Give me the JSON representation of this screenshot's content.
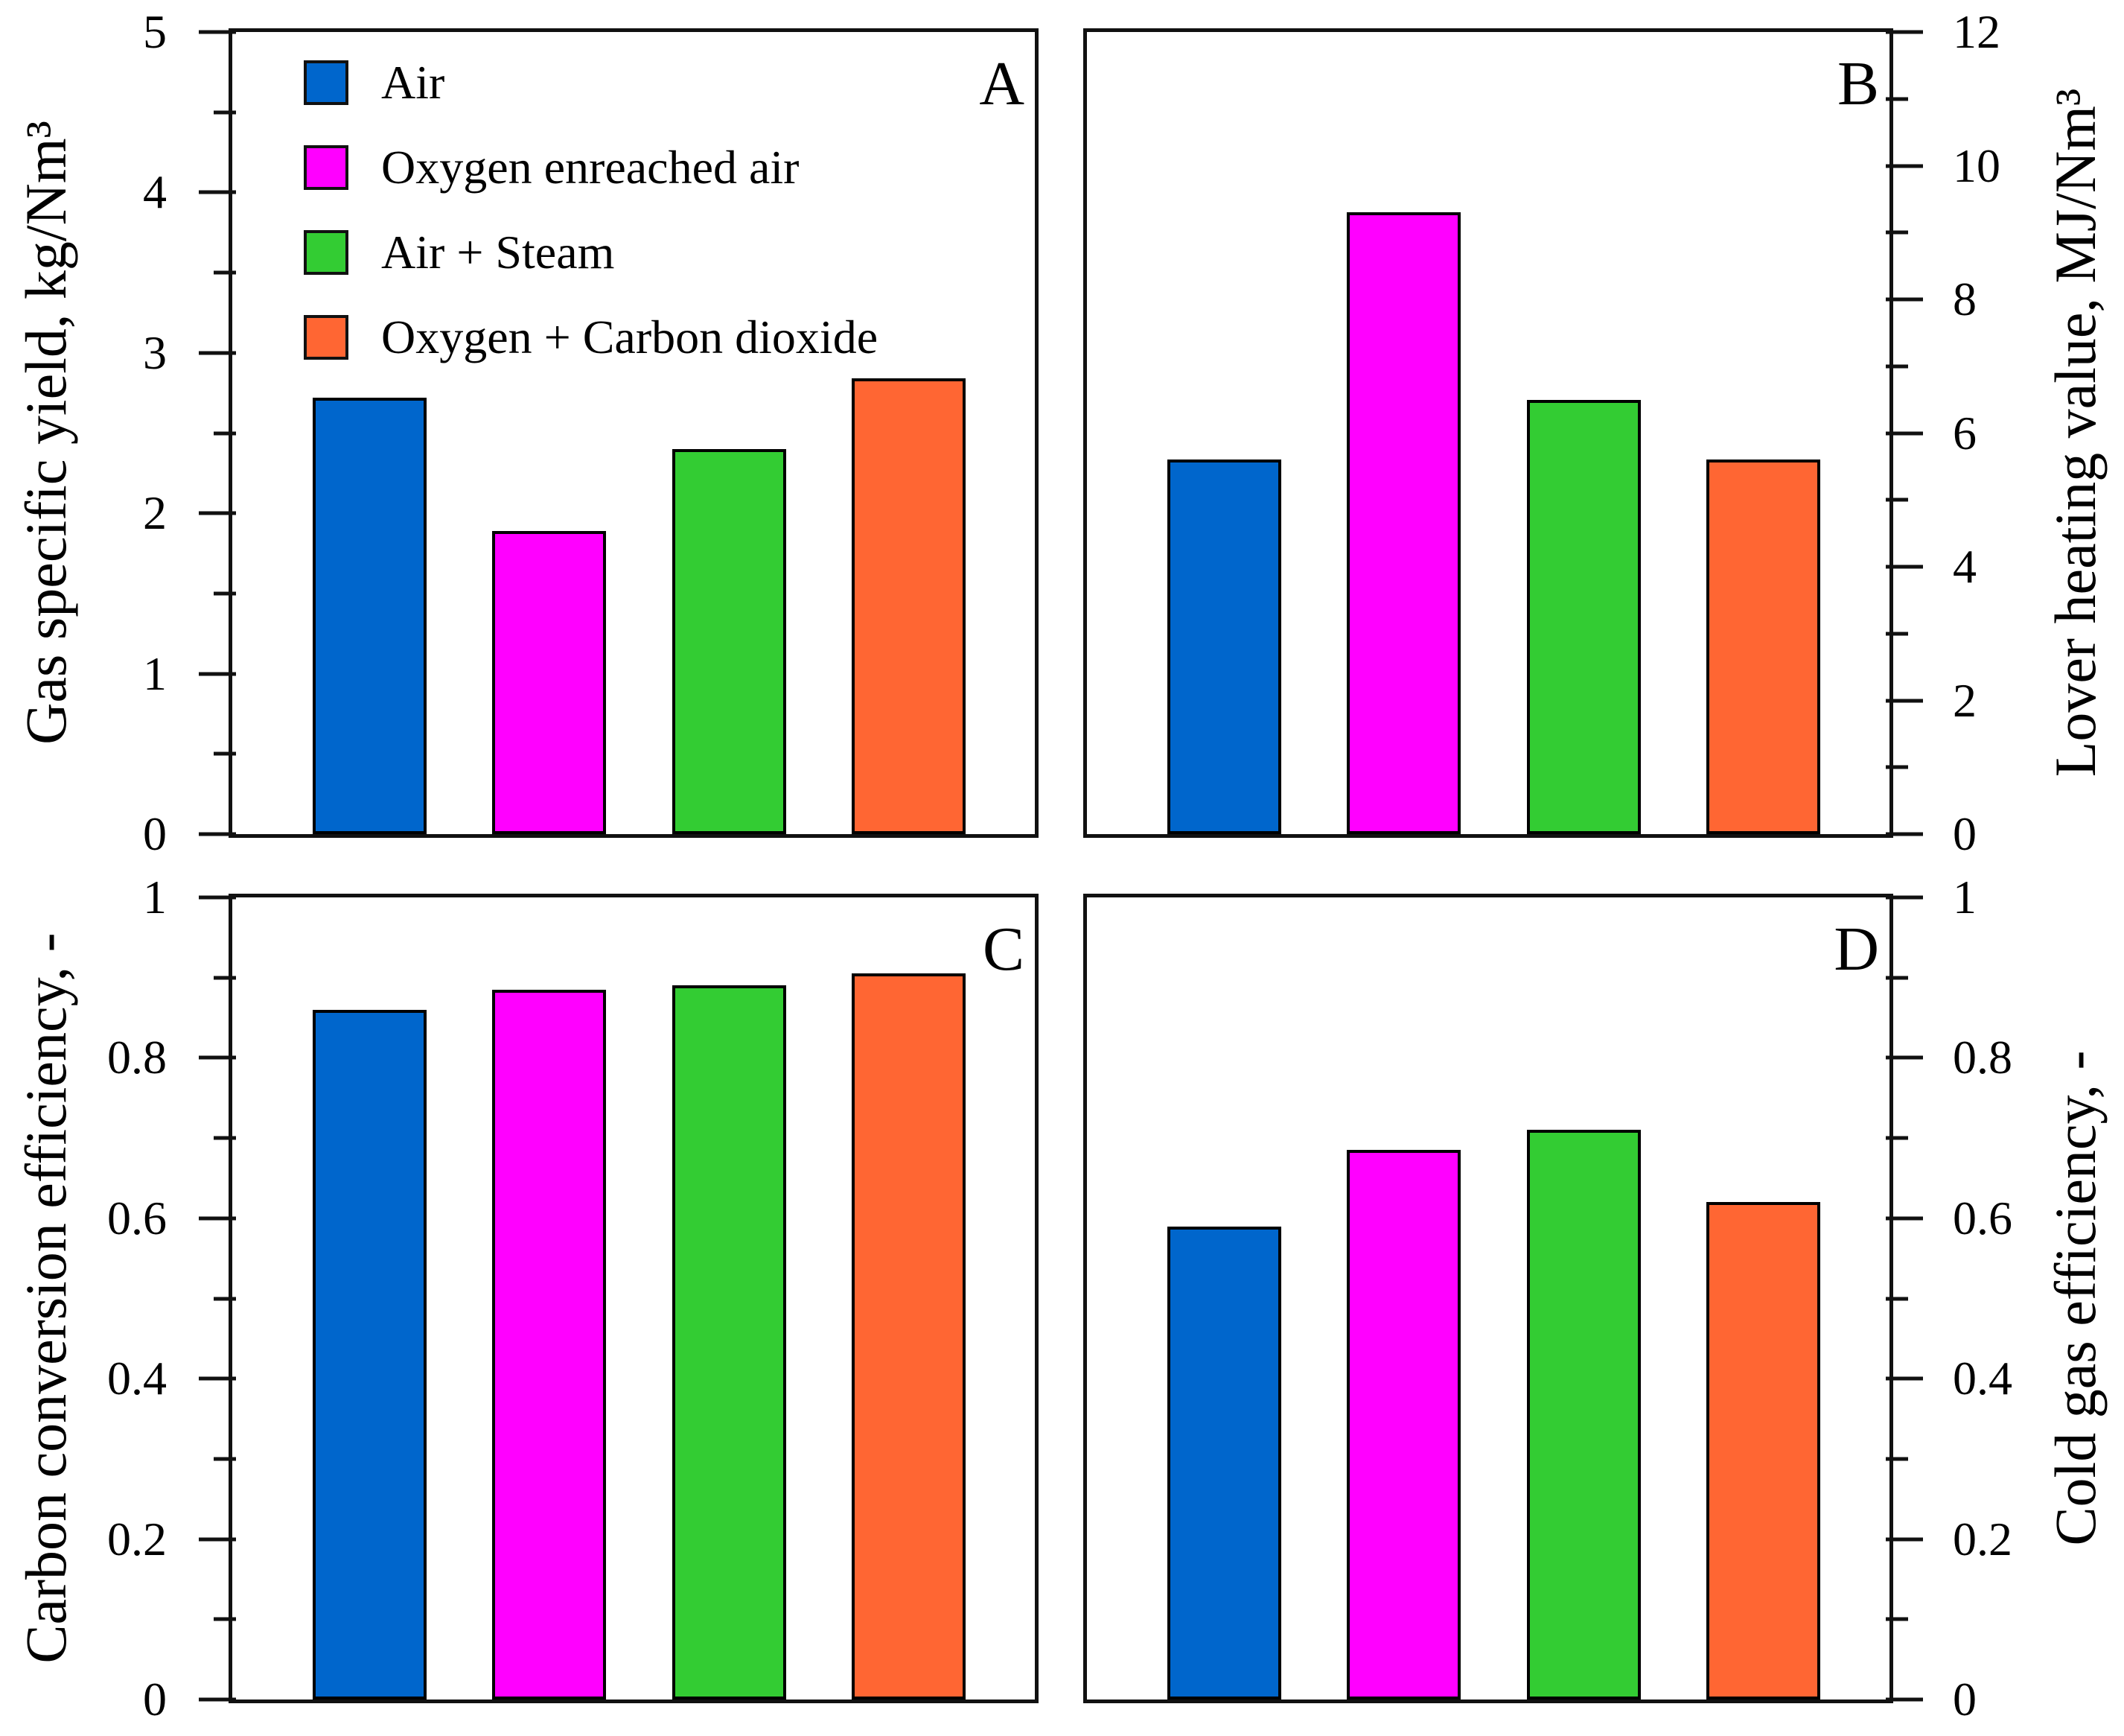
{
  "figure": {
    "background": "#ffffff",
    "axis_color": "#111111"
  },
  "legend": {
    "items": [
      {
        "label": "Air",
        "color": "#0066CC"
      },
      {
        "label": "Oxygen enreached air",
        "color": "#FF00FF"
      },
      {
        "label": "Air + Steam",
        "color": "#33CC33"
      },
      {
        "label": "Oxygen + Carbon dioxide",
        "color": "#FF6633"
      }
    ]
  },
  "chart_data": [
    {
      "type": "bar",
      "panel_label": "A",
      "ylabel": "Gas specific yield, kg/Nm³",
      "axis_side": "left",
      "ylim": [
        0,
        5
      ],
      "ytick_major": [
        0,
        1,
        2,
        3,
        4,
        5
      ],
      "ytick_labels": [
        "0",
        "1",
        "2",
        "3",
        "4",
        "5"
      ],
      "ytick_minor_step": 0.5,
      "categories": [
        "Air",
        "Oxygen enreached air",
        "Air + Steam",
        "Oxygen + Carbon dioxide"
      ],
      "values": [
        2.72,
        1.89,
        2.4,
        2.84
      ],
      "legend_position": "top-left",
      "grid": false
    },
    {
      "type": "bar",
      "panel_label": "B",
      "ylabel": "Lover heating value, MJ/Nm³",
      "axis_side": "right",
      "ylim": [
        0,
        12
      ],
      "ytick_major": [
        0,
        2,
        4,
        6,
        8,
        10,
        12
      ],
      "ytick_labels": [
        "0",
        "2",
        "4",
        "6",
        "8",
        "10",
        "12"
      ],
      "ytick_minor_step": 1,
      "categories": [
        "Air",
        "Oxygen enreached air",
        "Air + Steam",
        "Oxygen + Carbon dioxide"
      ],
      "values": [
        5.6,
        9.3,
        6.5,
        5.6
      ],
      "grid": false
    },
    {
      "type": "bar",
      "panel_label": "C",
      "ylabel": "Carbon conversion efficiency, -",
      "axis_side": "left",
      "ylim": [
        0,
        1
      ],
      "ytick_major": [
        0,
        0.2,
        0.4,
        0.6,
        0.8,
        1
      ],
      "ytick_labels": [
        "0",
        "0.2",
        "0.4",
        "0.6",
        "0.8",
        "1"
      ],
      "ytick_minor_step": 0.1,
      "categories": [
        "Air",
        "Oxygen enreached air",
        "Air + Steam",
        "Oxygen + Carbon dioxide"
      ],
      "values": [
        0.86,
        0.885,
        0.89,
        0.905
      ],
      "grid": false
    },
    {
      "type": "bar",
      "panel_label": "D",
      "ylabel": "Cold gas efficiency, -",
      "axis_side": "right",
      "ylim": [
        0,
        1
      ],
      "ytick_major": [
        0,
        0.2,
        0.4,
        0.6,
        0.8,
        1
      ],
      "ytick_labels": [
        "0",
        "0.2",
        "0.4",
        "0.6",
        "0.8",
        "1"
      ],
      "ytick_minor_step": 0.1,
      "categories": [
        "Air",
        "Oxygen enreached air",
        "Air + Steam",
        "Oxygen + Carbon dioxide"
      ],
      "values": [
        0.59,
        0.685,
        0.71,
        0.62
      ],
      "grid": false
    }
  ]
}
